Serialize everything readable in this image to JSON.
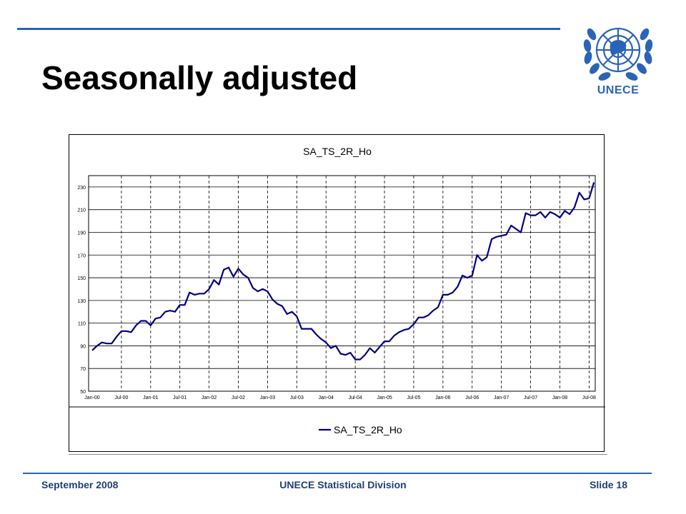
{
  "slide": {
    "title": "Seasonally adjusted",
    "footer_left": "September 2008",
    "footer_center": "UNECE Statistical Division",
    "footer_right": "Slide 18"
  },
  "logo": {
    "text": "UNECE",
    "color": "#2b63b8",
    "icon": "un-emblem-icon"
  },
  "colors": {
    "accent": "#2b63b8",
    "series": "#000080"
  },
  "chart_data": {
    "type": "line",
    "title": "SA_TS_2R_Ho",
    "xlabel": "",
    "ylabel": "",
    "ylim": [
      50,
      240
    ],
    "yticks": [
      50,
      70,
      90,
      110,
      130,
      150,
      170,
      190,
      210,
      230
    ],
    "grid": "horizontal solid, vertical dashed at Jan and Jul",
    "legend": "bottom-center",
    "x_tick_labels": [
      "Jan-00",
      "Jul-00",
      "Jan-01",
      "Jul-01",
      "Jan-02",
      "Jul-02",
      "Jan-03",
      "Jul-03",
      "Jan-04",
      "Jul-04",
      "Jan-05",
      "Jul-05",
      "Jan-06",
      "Jul-06",
      "Jan-07",
      "Jul-07",
      "Jan-08",
      "Jul-08"
    ],
    "x_start": "Jan-00",
    "x_frequency": "monthly",
    "series": [
      {
        "name": "SA_TS_2R_Ho",
        "values": [
          86,
          90,
          93,
          92,
          92,
          98,
          103,
          103,
          102,
          108,
          112,
          112,
          108,
          114,
          115,
          120,
          121,
          120,
          126,
          126,
          137,
          135,
          136,
          136,
          140,
          148,
          144,
          157,
          159,
          151,
          158,
          153,
          150,
          141,
          138,
          140,
          138,
          131,
          127,
          125,
          118,
          120,
          116,
          105,
          105,
          105,
          100,
          96,
          93,
          88,
          90,
          83,
          82,
          84,
          78,
          78,
          82,
          88,
          84,
          89,
          94,
          94,
          99,
          102,
          104,
          105,
          109,
          115,
          115,
          117,
          121,
          124,
          135,
          135,
          137,
          142,
          152,
          150,
          152,
          170,
          165,
          168,
          184,
          186,
          187,
          188,
          196,
          193,
          190,
          207,
          205,
          205,
          208,
          203,
          208,
          206,
          203,
          209,
          206,
          212,
          225,
          219,
          220,
          234
        ]
      }
    ]
  }
}
